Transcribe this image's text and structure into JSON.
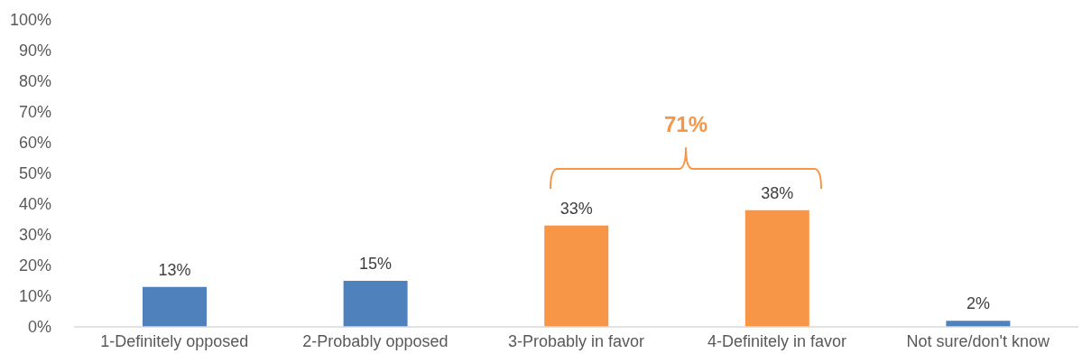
{
  "chart_data": {
    "type": "bar",
    "categories": [
      "1-Definitely opposed",
      "2-Probably opposed",
      "3-Probably in favor",
      "4-Definitely in favor",
      "Not sure/don't know"
    ],
    "values": [
      13,
      15,
      33,
      38,
      2
    ],
    "colors": [
      "#4f81bd",
      "#4f81bd",
      "#f79646",
      "#f79646",
      "#4f81bd"
    ],
    "value_labels": [
      "13%",
      "15%",
      "33%",
      "38%",
      "2%"
    ],
    "ylim": [
      0,
      100
    ],
    "yticks": [
      {
        "value": 0,
        "label": "0%"
      },
      {
        "value": 10,
        "label": "10%"
      },
      {
        "value": 20,
        "label": "20%"
      },
      {
        "value": 30,
        "label": "30%"
      },
      {
        "value": 40,
        "label": "40%"
      },
      {
        "value": 50,
        "label": "50%"
      },
      {
        "value": 60,
        "label": "60%"
      },
      {
        "value": 70,
        "label": "70%"
      },
      {
        "value": 80,
        "label": "80%"
      },
      {
        "value": 90,
        "label": "90%"
      },
      {
        "value": 100,
        "label": "100%"
      }
    ],
    "annotations": [
      "71%"
    ]
  }
}
